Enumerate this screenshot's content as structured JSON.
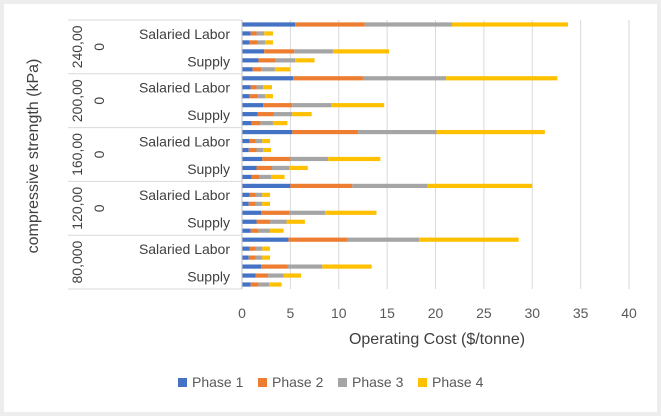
{
  "chart_data": {
    "type": "bar",
    "orientation": "horizontal",
    "stacked": true,
    "xlabel": "Operating Cost ($/tonne)",
    "ylabel": "compressive strength (kPa)",
    "xlim": [
      0,
      40
    ],
    "xticks": [
      0,
      5,
      10,
      15,
      20,
      25,
      30,
      35,
      40
    ],
    "grid": true,
    "legend_position": "bottom",
    "groups": [
      "240,00\n0",
      "200,00\n0",
      "160,00\n0",
      "120,00\n0",
      "80,000"
    ],
    "group_labels": [
      "240,00",
      "0",
      "200,00",
      "0",
      "160,00",
      "0",
      "120,00",
      "0",
      "80,000"
    ],
    "category_labels": [
      "Salaried Labor",
      "Supply"
    ],
    "series": [
      {
        "name": "Phase 1",
        "color": "#4472c4",
        "values": [
          5.5,
          0.9,
          0.8,
          2.3,
          1.7,
          1.1,
          5.3,
          0.9,
          0.8,
          2.2,
          1.6,
          1.0,
          5.2,
          0.8,
          0.7,
          2.1,
          1.5,
          1.0,
          5.0,
          0.8,
          0.7,
          2.0,
          1.5,
          0.9,
          4.8,
          0.8,
          0.7,
          2.0,
          1.4,
          0.9
        ]
      },
      {
        "name": "Phase 2",
        "color": "#ed7d31",
        "values": [
          7.2,
          0.6,
          0.8,
          3.1,
          1.8,
          0.9,
          7.2,
          0.6,
          0.8,
          3.0,
          1.7,
          0.9,
          6.8,
          0.6,
          0.8,
          2.9,
          1.6,
          0.8,
          6.4,
          0.6,
          0.7,
          2.9,
          1.4,
          0.8,
          6.1,
          0.6,
          0.7,
          2.7,
          1.3,
          0.8
        ]
      },
      {
        "name": "Phase 3",
        "color": "#a5a5a5",
        "values": [
          9.0,
          0.8,
          0.8,
          4.0,
          2.0,
          1.4,
          8.6,
          0.7,
          0.8,
          4.0,
          1.9,
          1.3,
          8.1,
          0.7,
          0.7,
          3.9,
          1.8,
          1.2,
          7.8,
          0.7,
          0.7,
          3.7,
          1.7,
          1.2,
          7.4,
          0.7,
          0.7,
          3.6,
          1.6,
          1.1
        ]
      },
      {
        "name": "Phase 4",
        "color": "#ffc000",
        "values": [
          12.0,
          0.9,
          0.8,
          5.8,
          2.0,
          1.6,
          11.5,
          0.9,
          0.8,
          5.5,
          2.0,
          1.5,
          11.2,
          0.8,
          0.8,
          5.4,
          1.9,
          1.4,
          10.8,
          0.8,
          0.8,
          5.3,
          1.9,
          1.4,
          10.3,
          0.8,
          0.8,
          5.1,
          1.8,
          1.3
        ]
      }
    ]
  }
}
